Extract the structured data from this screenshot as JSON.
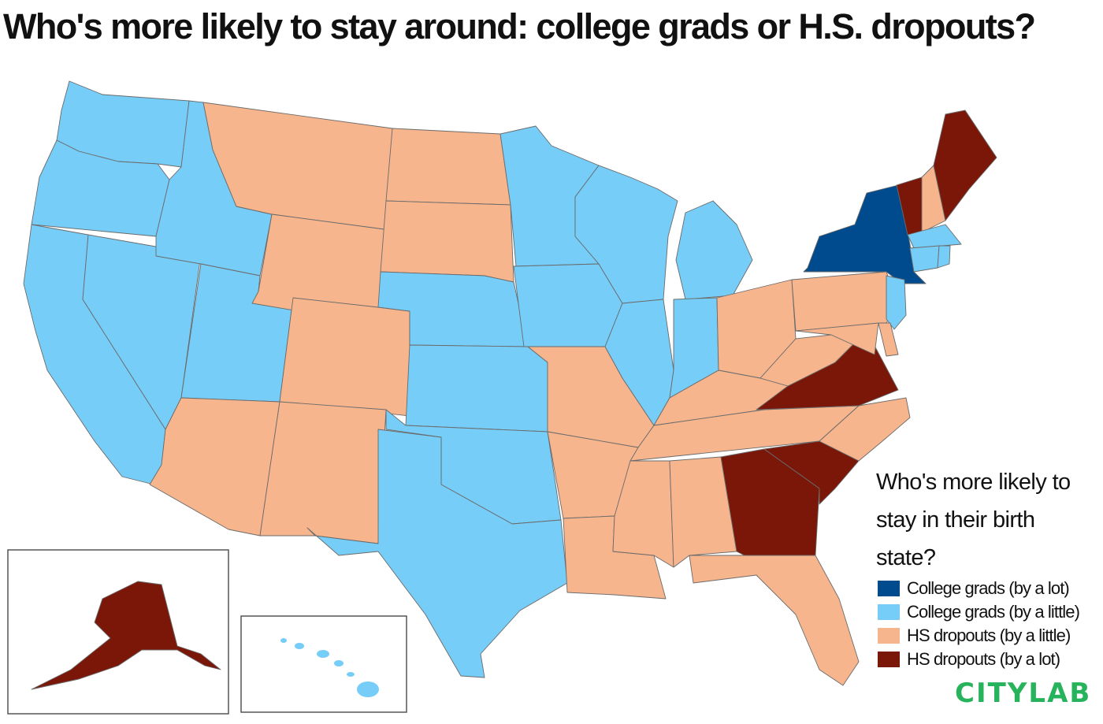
{
  "title": "Who's more likely to stay around: college grads or H.S. dropouts?",
  "legend": {
    "question": "Who's more likely to stay in their birth state?",
    "items": [
      {
        "key": "college_lot",
        "label": "College grads (by a lot)",
        "color": "#004b8d"
      },
      {
        "key": "college_little",
        "label": "College grads (by a little)",
        "color": "#76cdf7"
      },
      {
        "key": "hs_little",
        "label": "HS dropouts (by a little)",
        "color": "#f6b58d"
      },
      {
        "key": "hs_lot",
        "label": "HS dropouts (by a lot)",
        "color": "#7a1709"
      }
    ]
  },
  "logo": "CITYLAB",
  "map_data": {
    "categories": {
      "college_lot": [
        "New York"
      ],
      "college_little": [
        "Washington",
        "Oregon",
        "California",
        "Idaho",
        "Nevada",
        "Utah",
        "Minnesota",
        "Wisconsin",
        "Michigan",
        "Iowa",
        "Illinois",
        "Indiana",
        "Nebraska",
        "Kansas",
        "Oklahoma",
        "Texas",
        "New Jersey",
        "Massachusetts",
        "Connecticut",
        "Rhode Island",
        "Hawaii"
      ],
      "hs_little": [
        "Montana",
        "Wyoming",
        "Colorado",
        "Arizona",
        "New Mexico",
        "North Dakota",
        "South Dakota",
        "Missouri",
        "Arkansas",
        "Louisiana",
        "Mississippi",
        "Alabama",
        "Florida",
        "Tennessee",
        "Kentucky",
        "Ohio",
        "West Virginia",
        "Pennsylvania",
        "Maryland",
        "Delaware",
        "North Carolina",
        "New Hampshire"
      ],
      "hs_lot": [
        "Maine",
        "Vermont",
        "Virginia",
        "Georgia",
        "South Carolina",
        "Alaska"
      ]
    }
  }
}
